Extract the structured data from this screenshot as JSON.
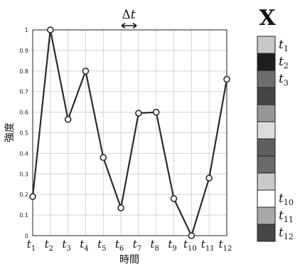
{
  "chart_data": {
    "type": "line",
    "x": [
      "t1",
      "t2",
      "t3",
      "t4",
      "t5",
      "t6",
      "t7",
      "t8",
      "t9",
      "t10",
      "t11",
      "t12"
    ],
    "x_tick_labels": [
      {
        "base": "t",
        "sub": "1"
      },
      {
        "base": "t",
        "sub": "2"
      },
      {
        "base": "t",
        "sub": "3"
      },
      {
        "base": "t",
        "sub": "4"
      },
      {
        "base": "t",
        "sub": "5"
      },
      {
        "base": "t",
        "sub": "6"
      },
      {
        "base": "t",
        "sub": "7"
      },
      {
        "base": "t",
        "sub": "8"
      },
      {
        "base": "t",
        "sub": "9"
      },
      {
        "base": "t",
        "sub": "10"
      },
      {
        "base": "t",
        "sub": "11"
      },
      {
        "base": "t",
        "sub": "12"
      }
    ],
    "series": [
      {
        "values": [
          0.19,
          1.0,
          0.565,
          0.8,
          0.38,
          0.135,
          0.595,
          0.6,
          0.18,
          0.0,
          0.28,
          0.76
        ]
      }
    ],
    "xlabel": "時間",
    "ylabel": "強度",
    "ylim": [
      0,
      1
    ],
    "y_ticks": [
      "0",
      "0.1",
      "0.2",
      "0.3",
      "0.4",
      "0.5",
      "0.6",
      "0.7",
      "0.8",
      "0.9",
      "1"
    ],
    "grid": true,
    "marker": "open-circle",
    "line_color": "#2b2b2b",
    "grid_color": "#d4d4d4"
  },
  "delta_annotation": {
    "symbol": "Δ",
    "var": "t"
  },
  "vector_strip": {
    "label": "X",
    "cells": [
      {
        "gray": "#c8c8c8",
        "label": {
          "base": "t",
          "sub": "1"
        }
      },
      {
        "gray": "#1e1e1e",
        "label": {
          "base": "t",
          "sub": "2"
        }
      },
      {
        "gray": "#6e6e6e",
        "label": {
          "base": "t",
          "sub": "3"
        }
      },
      {
        "gray": "#454545",
        "label": null
      },
      {
        "gray": "#969696",
        "label": null
      },
      {
        "gray": "#dcdcdc",
        "label": null
      },
      {
        "gray": "#5e5e5e",
        "label": null
      },
      {
        "gray": "#6a6a6a",
        "label": null
      },
      {
        "gray": "#cacaca",
        "label": null
      },
      {
        "gray": "#ffffff",
        "label": {
          "base": "t",
          "sub": "10"
        }
      },
      {
        "gray": "#a8a8a8",
        "label": {
          "base": "t",
          "sub": "11"
        }
      },
      {
        "gray": "#464646",
        "label": {
          "base": "t",
          "sub": "12"
        }
      }
    ]
  }
}
